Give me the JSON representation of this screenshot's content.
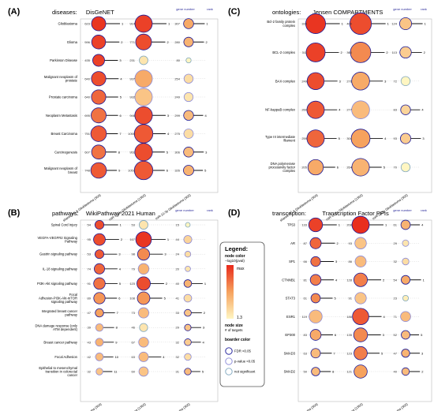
{
  "legend": {
    "title": "Legend:",
    "color_title": "node color",
    "color_sub": "−log10(pval)",
    "max_label": "max",
    "min_label": "1.3",
    "size_title": "node size",
    "size_sub": "# of targets",
    "border_title": "boarder color",
    "border_items": [
      "FDR <0.05",
      "p-value <0.05",
      "not significant"
    ],
    "colors": {
      "max": "#e8291a",
      "mid": "#f6a25e",
      "min": "#fff6c2",
      "fdr": "#1a1a99",
      "pval": "#8a8ad8",
      "ns": "#7fa7bf"
    }
  },
  "columns": [
    "shared PD & Glioblastoma (304)",
    "miR-16-5p Glioblastoma (1365)",
    "miR-22-3p Glioblastoma (305)"
  ],
  "header_labels": {
    "gene_number": "gene number",
    "rank": "rank"
  },
  "chart_data": [
    {
      "type": "scatter",
      "tag": "(A)",
      "title_prefix": "diseases:",
      "title": "DisGeNET",
      "categories": [
        "Glioblastoma",
        "Glioma",
        "Parkinson Disease",
        "Malignant neoplasm of prostate",
        "Prostate carcinoma",
        "Neoplasm Metastasis",
        "Breast Carcinoma",
        "Carcinogenesis",
        "Malignant neoplasm of breast"
      ],
      "series": [
        {
          "values": [
            623,
            596,
            435,
            640,
            640,
            695,
            751,
            607,
            748
          ],
          "intensity": [
            0.95,
            0.9,
            0.9,
            0.85,
            0.75,
            0.7,
            0.8,
            0.7,
            0.8
          ],
          "border": [
            "fdr",
            "fdr",
            "fdr",
            "fdr",
            "fdr",
            "fdr",
            "fdr",
            "fdr",
            "fdr"
          ],
          "rank": [
            1,
            2,
            3,
            4,
            5,
            6,
            7,
            8,
            9
          ]
        },
        {
          "values": [
            914,
            771,
            231,
            937,
            932,
            946,
            1055,
            951,
            1051
          ],
          "intensity": [
            0.9,
            0.85,
            0.1,
            0.45,
            0.3,
            0.85,
            0.8,
            0.85,
            0.8
          ],
          "border": [
            "fdr",
            "fdr",
            "ns",
            "pval",
            "pval",
            "fdr",
            "fdr",
            "fdr",
            "fdr"
          ],
          "rank": [
            1,
            2,
            null,
            null,
            null,
            3,
            4,
            5,
            6
          ]
        },
        {
          "values": [
            307,
            280,
            80,
            254,
            249,
            299,
            275,
            306,
            326
          ],
          "intensity": [
            0.45,
            0.4,
            0.0,
            0.15,
            0.1,
            0.35,
            0.15,
            0.35,
            0.4
          ],
          "border": [
            "fdr",
            "fdr",
            "ns",
            "pval",
            "pval",
            "fdr",
            "pval",
            "fdr",
            "fdr"
          ],
          "rank": [
            1,
            2,
            null,
            null,
            null,
            4,
            null,
            3,
            5
          ]
        }
      ]
    },
    {
      "type": "scatter",
      "tag": "(C)",
      "title_prefix": "ontologies:",
      "title": "Jensen  COMPARTMENTS",
      "categories": [
        "Bcl-2 family protein complex",
        "BCL-2 complex",
        "BAX complex",
        "NF-kappaB complex",
        "Type III intermediate filament",
        "DNA polymerase processivity factor complex"
      ],
      "series": [
        {
          "values": [
            339,
            311,
            249,
            260,
            259,
            205
          ],
          "intensity": [
            0.95,
            0.9,
            0.85,
            0.8,
            0.75,
            0.45
          ],
          "border": [
            "fdr",
            "fdr",
            "fdr",
            "fdr",
            "fdr",
            "fdr"
          ],
          "rank": [
            1,
            2,
            3,
            4,
            5,
            6
          ]
        },
        {
          "values": [
            400,
            360,
            276,
            277,
            304,
            264
          ],
          "intensity": [
            0.85,
            0.6,
            0.45,
            0.35,
            0.5,
            0.4
          ],
          "border": [
            "fdr",
            "fdr",
            "fdr",
            "pval",
            "fdr",
            "fdr"
          ],
          "rank": [
            1,
            2,
            3,
            null,
            4,
            5
          ]
        },
        {
          "values": [
            124,
            113,
            72,
            83,
            93,
            70
          ],
          "intensity": [
            0.3,
            0.25,
            0.0,
            0.2,
            0.25,
            0.0
          ],
          "border": [
            "fdr",
            "fdr",
            "ns",
            "fdr",
            "fdr",
            "ns"
          ],
          "rank": [
            1,
            2,
            null,
            4,
            3,
            null
          ]
        }
      ]
    },
    {
      "type": "scatter",
      "tag": "(B)",
      "title_prefix": "pathways:",
      "title": "WikiPathway  2021  Human",
      "categories": [
        "Spinal Cord Injury",
        "VEGFA-VEGFR2 Signaling Pathway",
        "Gastrin signaling pathway",
        "IL-18 signaling pathway",
        "PI3K-Akt signaling pathway",
        "Focal Adhesion-PI3K-Akt-mTOR signaling pathway",
        "Integrated breast cancer pathway",
        "DNA damage response (only ATM dependent)",
        "Breast cancer pathway",
        "Focal Adhesion",
        "Epithelial to mesenchymal transition in colorectal cancer"
      ],
      "series": [
        {
          "values": [
            54,
            95,
            53,
            74,
            91,
            89,
            47,
            39,
            43,
            42,
            32
          ],
          "intensity": [
            0.85,
            0.85,
            0.8,
            0.75,
            0.7,
            0.55,
            0.5,
            0.35,
            0.4,
            0.35,
            0.3
          ],
          "border": [
            "fdr",
            "fdr",
            "fdr",
            "fdr",
            "fdr",
            "fdr",
            "fdr",
            "pval",
            "pval",
            "pval",
            "pval"
          ],
          "rank": [
            1,
            2,
            3,
            4,
            5,
            6,
            7,
            8,
            9,
            10,
            11
          ]
        },
        {
          "values": [
            53,
            167,
            98,
            79,
            123,
            108,
            73,
            46,
            67,
            63,
            60
          ],
          "intensity": [
            0.1,
            0.95,
            0.6,
            0.4,
            0.85,
            0.55,
            0.35,
            0.1,
            0.35,
            0.35,
            0.3
          ],
          "border": [
            "ns",
            "fdr",
            "fdr",
            "pval",
            "fdr",
            "fdr",
            "pval",
            "ns",
            "pval",
            "pval",
            "pval"
          ],
          "rank": [
            null,
            1,
            3,
            null,
            2,
            5,
            null,
            null,
            null,
            4,
            null
          ]
        },
        {
          "values": [
            15,
            44,
            24,
            20,
            40,
            41,
            33,
            29,
            32,
            32,
            31
          ],
          "intensity": [
            0.0,
            0.2,
            0.15,
            0.1,
            0.4,
            0.15,
            0.3,
            0.3,
            0.25,
            0.15,
            0.35
          ],
          "border": [
            "ns",
            "pval",
            "pval",
            "pval",
            "fdr",
            "pval",
            "fdr",
            "fdr",
            "fdr",
            "pval",
            "fdr"
          ],
          "rank": [
            null,
            null,
            null,
            null,
            1,
            null,
            2,
            3,
            4,
            null,
            5
          ]
        }
      ]
    },
    {
      "type": "scatter",
      "tag": "(D)",
      "title_prefix": "transcription:",
      "title": "Transcription  Factor  PPIs",
      "categories": [
        "TP53",
        "AR",
        "SP1",
        "CTNNB1",
        "STAT3",
        "ESR1",
        "EP300",
        "SMAD3",
        "SMAD2"
      ],
      "series": [
        {
          "values": [
            133,
            87,
            66,
            81,
            61,
            119,
            83,
            63,
            50
          ],
          "intensity": [
            0.9,
            0.75,
            0.7,
            0.65,
            0.6,
            0.35,
            0.45,
            0.35,
            0.35
          ],
          "border": [
            "fdr",
            "fdr",
            "fdr",
            "fdr",
            "fdr",
            "pval",
            "fdr",
            "fdr",
            "fdr"
          ],
          "rank": [
            1,
            2,
            3,
            4,
            5,
            null,
            6,
            7,
            8
          ]
        },
        {
          "values": [
            208,
            93,
            86,
            128,
            91,
            186,
            135,
            123,
            121
          ],
          "intensity": [
            0.98,
            0.3,
            0.35,
            0.65,
            0.3,
            0.8,
            0.6,
            0.65,
            0.5
          ],
          "border": [
            "fdr",
            "pval",
            "pval",
            "fdr",
            "pval",
            "fdr",
            "fdr",
            "fdr",
            "fdr"
          ],
          "rank": [
            1,
            null,
            null,
            2,
            null,
            4,
            3,
            5,
            null
          ]
        },
        {
          "values": [
            61,
            29,
            32,
            54,
            23,
            71,
            52,
            47,
            40
          ],
          "intensity": [
            0.4,
            0.1,
            0.15,
            0.45,
            0.05,
            0.35,
            0.35,
            0.4,
            0.35
          ],
          "border": [
            "fdr",
            "pval",
            "pval",
            "fdr",
            "ns",
            "pval",
            "fdr",
            "fdr",
            "fdr"
          ],
          "rank": [
            4,
            null,
            null,
            1,
            null,
            null,
            5,
            3,
            2
          ]
        }
      ]
    }
  ]
}
